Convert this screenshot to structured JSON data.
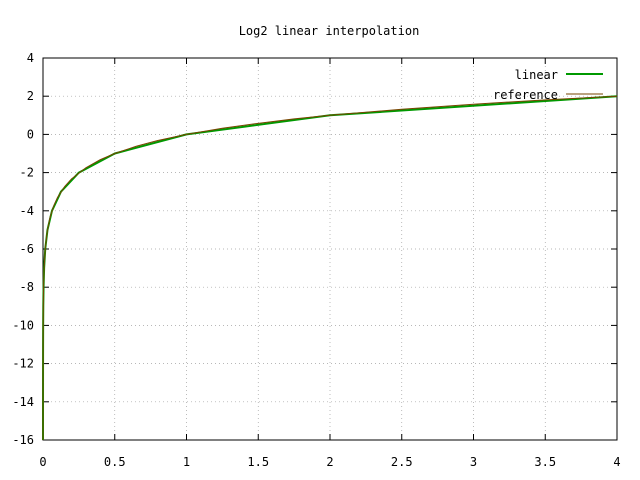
{
  "chart_data": {
    "type": "line",
    "title": "Log2 linear interpolation",
    "xlabel": "",
    "ylabel": "",
    "xlim": [
      0,
      4
    ],
    "ylim": [
      -16,
      4
    ],
    "x_ticks": [
      0,
      0.5,
      1,
      1.5,
      2,
      2.5,
      3,
      3.5,
      4
    ],
    "y_ticks": [
      -16,
      -14,
      -12,
      -10,
      -8,
      -6,
      -4,
      -2,
      0,
      2,
      4
    ],
    "x_tick_labels": [
      "0",
      "0.5",
      "1",
      "1.5",
      "2",
      "2.5",
      "3",
      "3.5",
      "4"
    ],
    "y_tick_labels": [
      "-16",
      "-14",
      "-12",
      "-10",
      "-8",
      "-6",
      "-4",
      "-2",
      "0",
      "2",
      "4"
    ],
    "grid": true,
    "legend_position": "top-right",
    "series": [
      {
        "name": "linear",
        "color": "#009900",
        "x": [
          1.53e-05,
          3.05e-05,
          6.1e-05,
          0.000122,
          0.000244,
          0.000488,
          0.000977,
          0.00195,
          0.0039,
          0.0078,
          0.0156,
          0.03125,
          0.0625,
          0.125,
          0.25,
          0.5,
          1,
          2,
          4
        ],
        "y": [
          -16,
          -15,
          -14,
          -13,
          -12,
          -11,
          -10,
          -9,
          -8,
          -7,
          -6,
          -5,
          -4,
          -3,
          -2,
          -1,
          0,
          1,
          2
        ]
      },
      {
        "name": "reference",
        "color": "#774400",
        "x": [
          1.53e-05,
          0.0001,
          0.0005,
          0.001,
          0.002,
          0.004,
          0.008,
          0.016,
          0.03,
          0.05,
          0.075,
          0.1,
          0.15,
          0.2,
          0.3,
          0.4,
          0.5,
          0.65,
          0.8,
          1,
          1.25,
          1.5,
          1.75,
          2,
          2.5,
          3,
          3.5,
          4
        ],
        "y": [
          -16,
          -13.29,
          -10.97,
          -9.97,
          -8.97,
          -7.97,
          -6.97,
          -5.97,
          -5.06,
          -4.32,
          -3.74,
          -3.32,
          -2.74,
          -2.32,
          -1.74,
          -1.32,
          -1,
          -0.62,
          -0.32,
          0,
          0.32,
          0.58,
          0.81,
          1,
          1.32,
          1.58,
          1.81,
          2
        ]
      }
    ]
  }
}
